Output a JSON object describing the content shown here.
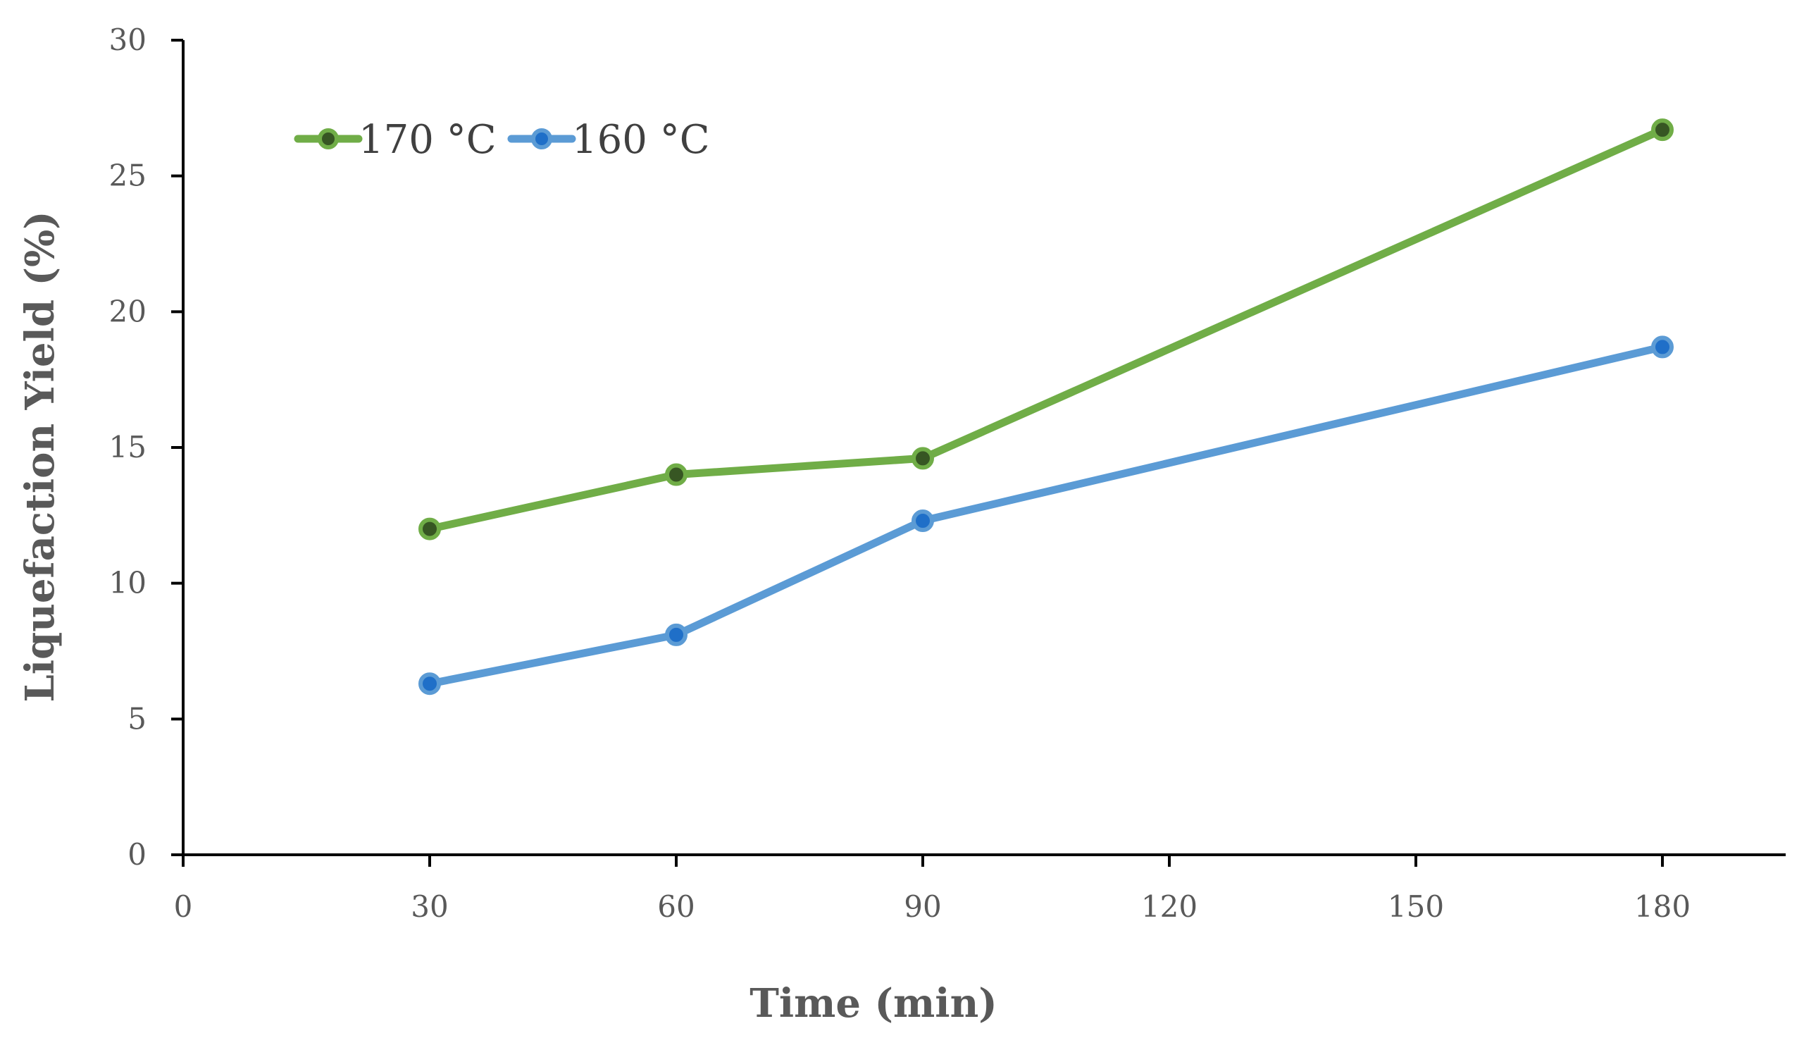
{
  "chart_data": {
    "type": "line",
    "title": "",
    "xlabel": "Time (min)",
    "ylabel": "Liquefaction Yield (%)",
    "xlim": [
      0,
      195
    ],
    "ylim": [
      0,
      30
    ],
    "xticks": [
      0,
      30,
      60,
      90,
      120,
      150,
      180
    ],
    "yticks": [
      0,
      5,
      10,
      15,
      20,
      25,
      30
    ],
    "grid": false,
    "legend_position": "top-left",
    "series": [
      {
        "name": "170 °C",
        "color": "#70AD47",
        "marker_color": "#375623",
        "x": [
          30,
          60,
          90,
          180
        ],
        "values": [
          12.0,
          14.0,
          14.6,
          26.7
        ]
      },
      {
        "name": "160 °C",
        "color": "#5B9BD5",
        "marker_color": "#1F6FC8",
        "x": [
          30,
          60,
          90,
          180
        ],
        "values": [
          6.3,
          8.1,
          12.3,
          18.7
        ]
      }
    ]
  }
}
